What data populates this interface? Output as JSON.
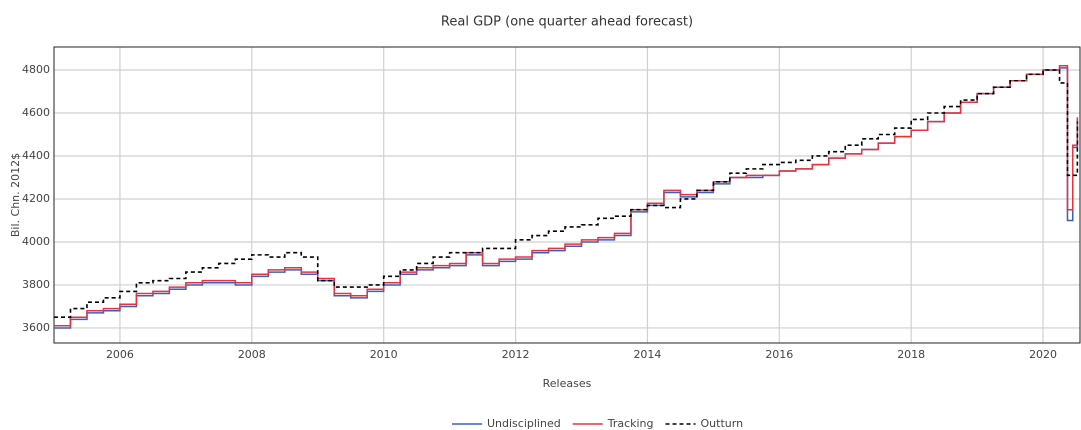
{
  "chart_data": {
    "type": "line",
    "title": "Real GDP (one quarter ahead forecast)",
    "x_label": "Releases",
    "y_label": "Bil. Chn. 2012$",
    "x": [
      2005.0,
      2005.25,
      2005.5,
      2005.75,
      2006.0,
      2006.25,
      2006.5,
      2006.75,
      2007.0,
      2007.25,
      2007.5,
      2007.75,
      2008.0,
      2008.25,
      2008.5,
      2008.75,
      2009.0,
      2009.25,
      2009.5,
      2009.75,
      2010.0,
      2010.25,
      2010.5,
      2010.75,
      2011.0,
      2011.25,
      2011.5,
      2011.75,
      2012.0,
      2012.25,
      2012.5,
      2012.75,
      2013.0,
      2013.25,
      2013.5,
      2013.75,
      2014.0,
      2014.25,
      2014.5,
      2014.75,
      2015.0,
      2015.25,
      2015.5,
      2015.75,
      2016.0,
      2016.25,
      2016.5,
      2016.75,
      2017.0,
      2017.25,
      2017.5,
      2017.75,
      2018.0,
      2018.25,
      2018.5,
      2018.75,
      2019.0,
      2019.25,
      2019.5,
      2019.75,
      2020.0,
      2020.25,
      2020.37,
      2020.45,
      2020.52
    ],
    "series": [
      {
        "name": "Undisciplined",
        "color": "#3b5fc0",
        "dash": false,
        "values": [
          3600,
          3640,
          3670,
          3680,
          3700,
          3750,
          3760,
          3780,
          3800,
          3810,
          3810,
          3800,
          3840,
          3860,
          3870,
          3850,
          3820,
          3750,
          3740,
          3770,
          3800,
          3850,
          3870,
          3880,
          3890,
          3940,
          3890,
          3910,
          3920,
          3950,
          3960,
          3980,
          4000,
          4010,
          4030,
          4140,
          4170,
          4230,
          4210,
          4230,
          4270,
          4300,
          4300,
          4310,
          4330,
          4340,
          4360,
          4390,
          4410,
          4430,
          4460,
          4490,
          4520,
          4560,
          4600,
          4650,
          4690,
          4720,
          4750,
          4780,
          4800,
          4810,
          4100,
          4440,
          4570
        ]
      },
      {
        "name": "Tracking",
        "color": "#e8333f",
        "dash": false,
        "values": [
          3610,
          3650,
          3680,
          3690,
          3710,
          3760,
          3770,
          3790,
          3810,
          3820,
          3820,
          3810,
          3850,
          3870,
          3880,
          3860,
          3830,
          3760,
          3750,
          3780,
          3810,
          3860,
          3880,
          3890,
          3900,
          3950,
          3900,
          3920,
          3930,
          3960,
          3970,
          3990,
          4010,
          4020,
          4040,
          4150,
          4180,
          4240,
          4220,
          4240,
          4280,
          4300,
          4310,
          4310,
          4330,
          4340,
          4360,
          4390,
          4410,
          4430,
          4460,
          4490,
          4520,
          4560,
          4600,
          4650,
          4690,
          4720,
          4750,
          4780,
          4800,
          4820,
          4150,
          4450,
          4580
        ]
      },
      {
        "name": "Outturn",
        "color": "#000000",
        "dash": true,
        "values": [
          3650,
          3690,
          3720,
          3740,
          3770,
          3810,
          3820,
          3830,
          3860,
          3880,
          3900,
          3920,
          3940,
          3930,
          3950,
          3930,
          3820,
          3790,
          3790,
          3800,
          3840,
          3870,
          3900,
          3930,
          3950,
          3950,
          3970,
          3970,
          4010,
          4030,
          4050,
          4070,
          4080,
          4110,
          4120,
          4150,
          4170,
          4160,
          4200,
          4240,
          4280,
          4320,
          4340,
          4360,
          4370,
          4380,
          4400,
          4420,
          4450,
          4480,
          4500,
          4530,
          4570,
          4600,
          4630,
          4660,
          4690,
          4720,
          4750,
          4780,
          4800,
          4740,
          4310,
          4310,
          4560
        ]
      }
    ],
    "xlim": [
      2005.0,
      2020.56
    ],
    "ylim": [
      3530,
      4907
    ],
    "xticks": [
      2006,
      2008,
      2010,
      2012,
      2014,
      2016,
      2018,
      2020
    ],
    "yticks": [
      3600,
      3800,
      4000,
      4200,
      4400,
      4600,
      4800
    ],
    "grid": true,
    "legend": "bottom"
  }
}
